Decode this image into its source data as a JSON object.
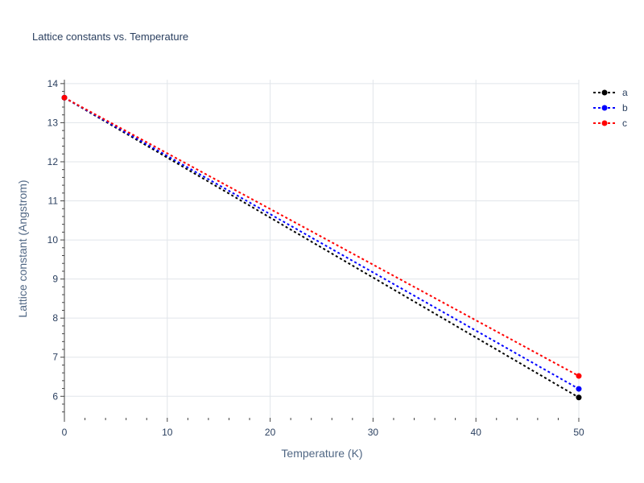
{
  "chart_data": {
    "type": "line",
    "title": "Lattice constants vs. Temperature",
    "xlabel": "Temperature (K)",
    "ylabel": "Lattice constant (Angstrom)",
    "xlim": [
      0,
      50
    ],
    "ylim": [
      5.45,
      14.1
    ],
    "x_ticks": [
      0,
      10,
      20,
      30,
      40,
      50
    ],
    "y_ticks": [
      6,
      7,
      8,
      9,
      10,
      11,
      12,
      13,
      14
    ],
    "grid": true,
    "legend_position": "top-right",
    "line_style": "dotted",
    "series": [
      {
        "name": "a",
        "color": "#000000",
        "x": [
          0,
          50
        ],
        "y": [
          13.64,
          5.97
        ]
      },
      {
        "name": "b",
        "color": "#0000ff",
        "x": [
          0,
          50
        ],
        "y": [
          13.64,
          6.19
        ]
      },
      {
        "name": "c",
        "color": "#ff0000",
        "x": [
          0,
          50
        ],
        "y": [
          13.64,
          6.52
        ]
      }
    ]
  }
}
